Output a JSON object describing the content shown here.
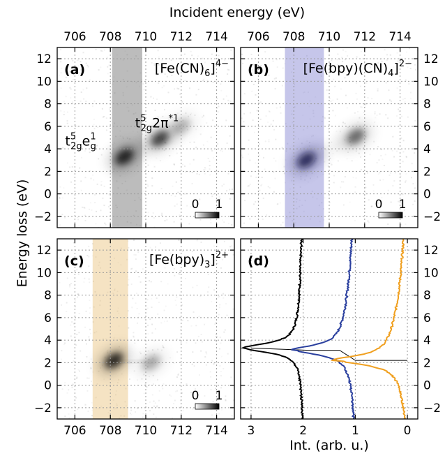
{
  "figure": {
    "top_xlabel": "Incident energy (eV)",
    "bottom_xlabel_map": "",
    "ylabel": "Energy loss (eV)"
  },
  "chart_data": [
    {
      "type": "heatmap",
      "panel": "(a)",
      "title": "[Fe(CN)6]4-",
      "title_main": "[Fe(CN)",
      "title_sub": "6",
      "title_close": "]",
      "title_sup": "4-",
      "xlim": [
        705,
        715
      ],
      "ylim": [
        -3,
        13
      ],
      "xticks": [
        "706",
        "708",
        "710",
        "712",
        "714"
      ],
      "yticks": [
        "-2",
        "0",
        "2",
        "4",
        "6",
        "8",
        "10",
        "12"
      ],
      "highlight_band": [
        708.1,
        709.8
      ],
      "band_color": "#6b6b6b",
      "colorbar": {
        "min": "0",
        "max": "1"
      },
      "annotations": [
        {
          "text": "t2g^5 eg^1",
          "x": 707.2,
          "y": 4.3
        },
        {
          "text": "t2g^5 2π*1",
          "x": 709.4,
          "y": 5.9
        }
      ],
      "features": [
        {
          "x": 708.8,
          "y": 3.3,
          "intensity": 1.0
        },
        {
          "x": 710.8,
          "y": 4.9,
          "intensity": 0.85
        },
        {
          "x": 712.0,
          "y": 6.0,
          "intensity": 0.3
        }
      ]
    },
    {
      "type": "heatmap",
      "panel": "(b)",
      "title": "[Fe(bpy)(CN)4]2-",
      "title_main": "[Fe(bpy)(CN)",
      "title_sub": "4",
      "title_close": "]",
      "title_sup": "2-",
      "xlim": [
        705,
        715
      ],
      "ylim": [
        -3,
        13
      ],
      "xticks": [
        "706",
        "708",
        "710",
        "712",
        "714"
      ],
      "yticks": [
        "-2",
        "0",
        "2",
        "4",
        "6",
        "8",
        "10",
        "12"
      ],
      "highlight_band": [
        707.5,
        709.7
      ],
      "band_color": "#8080d0",
      "colorbar": {
        "min": "0",
        "max": "1"
      },
      "features": [
        {
          "x": 708.7,
          "y": 3.0,
          "intensity": 1.0
        },
        {
          "x": 711.5,
          "y": 5.1,
          "intensity": 0.65
        }
      ]
    },
    {
      "type": "heatmap",
      "panel": "(c)",
      "title": "[Fe(bpy)3]2+",
      "title_main": "[Fe(bpy)",
      "title_sub": "3",
      "title_close": "]",
      "title_sup": "2+",
      "xlim": [
        705,
        715
      ],
      "ylim": [
        -3,
        13
      ],
      "xticks": [
        "706",
        "708",
        "710",
        "712",
        "714"
      ],
      "yticks": [
        "-2",
        "0",
        "2",
        "4",
        "6",
        "8",
        "10",
        "12"
      ],
      "highlight_band": [
        707.0,
        709.0
      ],
      "band_color": "#e8c07a",
      "colorbar": {
        "min": "0",
        "max": "1"
      },
      "features": [
        {
          "x": 708.2,
          "y": 2.2,
          "intensity": 1.0
        },
        {
          "x": 710.3,
          "y": 2.0,
          "intensity": 0.35
        }
      ]
    },
    {
      "type": "line",
      "panel": "(d)",
      "xlabel": "Int. (arb. u.)",
      "xlim": [
        3.2,
        -0.2
      ],
      "ylim": [
        -3,
        13
      ],
      "xticks": [
        "3",
        "2",
        "1",
        "0"
      ],
      "yticks": [
        "-2",
        "0",
        "2",
        "4",
        "6",
        "8",
        "10",
        "12"
      ],
      "series": [
        {
          "color": "#000000",
          "offset": 2.0,
          "peak_y": 3.3,
          "amp": 1.0,
          "width": 0.9,
          "tail": 0.15
        },
        {
          "color": "#2a3f9e",
          "offset": 1.0,
          "peak_y": 3.1,
          "amp": 0.9,
          "width": 0.9,
          "tail": 0.35
        },
        {
          "color": "#f0a020",
          "offset": 0.0,
          "peak_y": 2.2,
          "amp": 1.0,
          "width": 0.9,
          "tail": 0.45
        }
      ],
      "connector": [
        [
          3.0,
          3.3
        ],
        [
          1.9,
          3.1
        ],
        [
          1.3,
          3.1
        ],
        [
          1.0,
          2.2
        ],
        [
          0.0,
          2.2
        ]
      ]
    }
  ]
}
